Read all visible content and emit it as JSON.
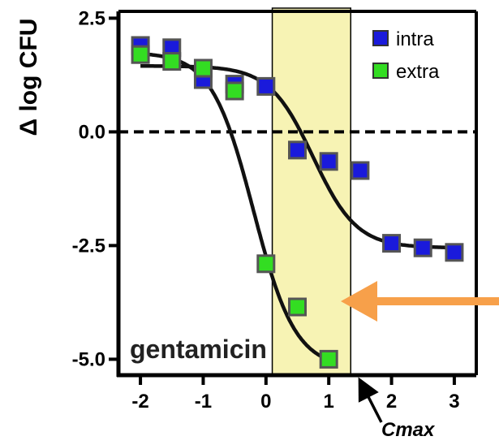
{
  "chart_data": {
    "type": "scatter",
    "ylabel": "Δ log CFU",
    "xlabel": "",
    "xlim": [
      -2.35,
      3.35
    ],
    "ylim": [
      -5.35,
      2.65
    ],
    "x_ticks": [
      -2,
      -1,
      0,
      1,
      2,
      3
    ],
    "y_ticks": [
      2.5,
      0.0,
      -2.5,
      -5.0
    ],
    "x_tick_labels": [
      "-2",
      "-1",
      "0",
      "1",
      "2",
      "3"
    ],
    "y_tick_labels": [
      "2.5",
      "0.0",
      "-2.5",
      "-5.0"
    ],
    "reference_line_y": 0,
    "legend_position": "top-right",
    "series": [
      {
        "name": "intra",
        "color": "#1a1adb",
        "x": [
          -2,
          -1.5,
          -1,
          -0.5,
          0,
          0.5,
          1,
          1.5,
          2,
          2.5,
          3
        ],
        "y": [
          1.9,
          1.85,
          1.15,
          1.05,
          1.0,
          -0.4,
          -0.65,
          -0.85,
          -2.45,
          -2.55,
          -2.65
        ],
        "fit": {
          "top": 1.45,
          "bottom": -2.55,
          "ec50": 0.75,
          "slope": 1.25
        }
      },
      {
        "name": "extra",
        "color": "#33dd22",
        "x": [
          -2,
          -1.5,
          -1,
          -0.5,
          0,
          0.5,
          1
        ],
        "y": [
          1.7,
          1.55,
          1.4,
          0.9,
          -2.9,
          -3.85,
          -5.0
        ],
        "fit": {
          "top": 1.75,
          "bottom": -5.2,
          "ec50": -0.2,
          "slope": 1.3
        }
      }
    ],
    "shaded_range_x": [
      0.1,
      1.35
    ],
    "shade_color": "#f7f3b4",
    "annotations": {
      "drug": "gentamicin",
      "cmax": "Cmax"
    },
    "arrow_color": "#f7a04a"
  }
}
